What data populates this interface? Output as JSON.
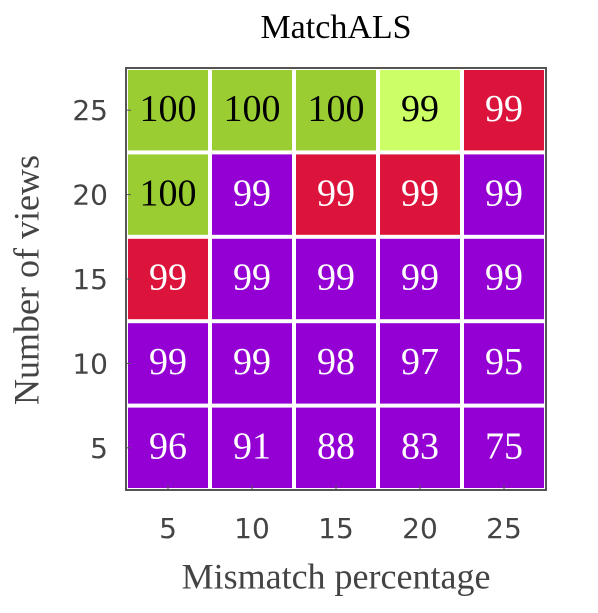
{
  "chart_data": {
    "type": "heatmap",
    "title": "MatchALS",
    "x_label": "Mismatch percentage",
    "y_label": "Number of views",
    "x_categories": [
      5,
      10,
      15,
      20,
      25
    ],
    "y_categories": [
      5,
      10,
      15,
      20,
      25
    ],
    "values": [
      [
        96,
        91,
        88,
        83,
        75
      ],
      [
        99,
        99,
        98,
        97,
        95
      ],
      [
        99,
        99,
        99,
        99,
        99
      ],
      [
        100,
        99,
        99,
        99,
        99
      ],
      [
        100,
        100,
        100,
        99,
        99
      ]
    ],
    "cell_colors": [
      [
        "#9400d3",
        "#9400d3",
        "#9400d3",
        "#9400d3",
        "#9400d3"
      ],
      [
        "#9400d3",
        "#9400d3",
        "#9400d3",
        "#9400d3",
        "#9400d3"
      ],
      [
        "#dc143c",
        "#9400d3",
        "#9400d3",
        "#9400d3",
        "#9400d3"
      ],
      [
        "#9acd32",
        "#9400d3",
        "#dc143c",
        "#dc143c",
        "#9400d3"
      ],
      [
        "#9acd32",
        "#9acd32",
        "#9acd32",
        "#ccff66",
        "#dc143c"
      ]
    ]
  }
}
